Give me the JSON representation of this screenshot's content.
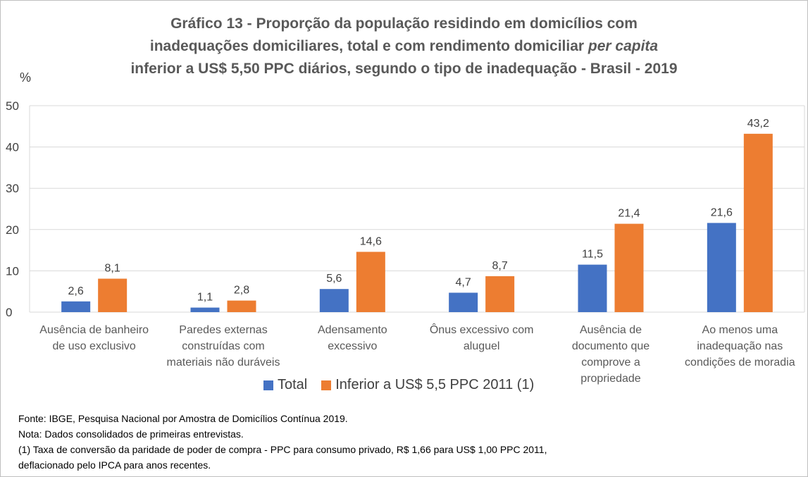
{
  "chart_data": {
    "type": "bar",
    "title_line1": "Gráfico 13 - Proporção da população residindo em domicílios com",
    "title_line2_a": "inadequações domiciliares, total e com rendimento domiciliar ",
    "title_line2_b": "per capita",
    "title_line3": "inferior a US$ 5,50 PPC diários, segundo o tipo de inadequação - Brasil - 2019",
    "ylabel": "%",
    "ylim": [
      0,
      50
    ],
    "yticks": [
      "0",
      "10",
      "20",
      "30",
      "40",
      "50"
    ],
    "categories": [
      [
        "Ausência de banheiro",
        "de uso exclusivo"
      ],
      [
        "Paredes externas",
        "construídas com",
        "materiais não duráveis"
      ],
      [
        "Adensamento",
        "excessivo"
      ],
      [
        "Ônus excessivo com",
        "aluguel"
      ],
      [
        "Ausência de",
        "documento que",
        "comprove a",
        "propriedade"
      ],
      [
        "Ao menos uma",
        "inadequação nas",
        "condições de moradia"
      ]
    ],
    "series": [
      {
        "name": "Total",
        "color": "#4472C4",
        "values": [
          2.6,
          1.1,
          5.6,
          4.7,
          11.5,
          21.6
        ],
        "labels": [
          "2,6",
          "1,1",
          "5,6",
          "4,7",
          "11,5",
          "21,6"
        ]
      },
      {
        "name": "Inferior a US$ 5,5 PPC 2011 (1)",
        "color": "#ED7D31",
        "values": [
          8.1,
          2.8,
          14.6,
          8.7,
          21.4,
          43.2
        ],
        "labels": [
          "8,1",
          "2,8",
          "14,6",
          "8,7",
          "21,4",
          "43,2"
        ]
      }
    ],
    "grid": true,
    "legend": "bottom"
  },
  "notes": {
    "source": "Fonte: IBGE, Pesquisa Nacional por Amostra de Domicílios Contínua 2019.",
    "note": "Nota: Dados consolidados de primeiras entrevistas.",
    "footnote1": "(1) Taxa de conversão da paridade de poder de compra - PPC para consumo privado, R$ 1,66 para US$ 1,00 PPC 2011,",
    "footnote2": "deflacionado pelo IPCA para anos recentes."
  }
}
